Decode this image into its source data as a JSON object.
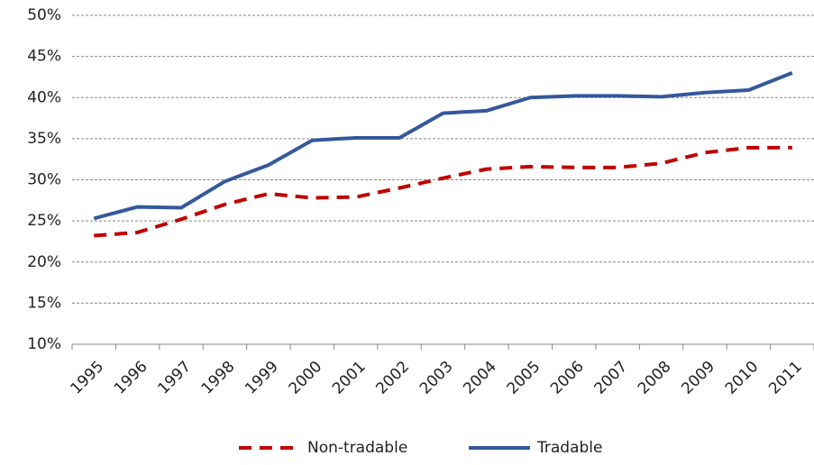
{
  "chart_data": {
    "type": "line",
    "categories": [
      "1995",
      "1996",
      "1997",
      "1998",
      "1999",
      "2000",
      "2001",
      "2002",
      "2003",
      "2004",
      "2005",
      "2006",
      "2007",
      "2008",
      "2009",
      "2010",
      "2011"
    ],
    "series": [
      {
        "name": "Non-tradable",
        "color": "#c00000",
        "line_style": "dashed",
        "values": [
          23.2,
          23.6,
          25.2,
          27.0,
          28.3,
          27.8,
          27.9,
          29.0,
          30.2,
          31.3,
          31.6,
          31.5,
          31.5,
          32.0,
          33.3,
          33.9,
          33.9
        ]
      },
      {
        "name": "Tradable",
        "color": "#34589b",
        "line_style": "solid",
        "values": [
          25.3,
          26.7,
          26.6,
          29.8,
          31.8,
          34.8,
          35.1,
          35.1,
          38.1,
          38.4,
          40.0,
          40.2,
          40.2,
          40.1,
          40.6,
          40.9,
          43.0
        ]
      }
    ],
    "ylim": [
      10,
      50
    ],
    "yticks": [
      {
        "value": 10,
        "label": "10%"
      },
      {
        "value": 15,
        "label": "15%"
      },
      {
        "value": 20,
        "label": "20%"
      },
      {
        "value": 25,
        "label": "25%"
      },
      {
        "value": 30,
        "label": "30%"
      },
      {
        "value": 35,
        "label": "35%"
      },
      {
        "value": 40,
        "label": "40%"
      },
      {
        "value": 45,
        "label": "45%"
      },
      {
        "value": 50,
        "label": "50%"
      }
    ],
    "grid": true,
    "legend": "bottom"
  }
}
